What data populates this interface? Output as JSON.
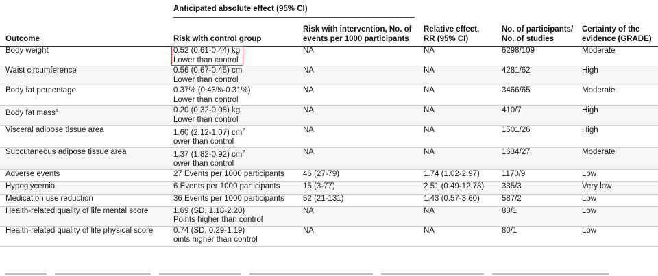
{
  "header": {
    "group_label": "Anticipated absolute effect (95% CI)",
    "columns": [
      {
        "line1": "",
        "line2": "Outcome"
      },
      {
        "line1": "",
        "line2": "Risk with control group"
      },
      {
        "line1": "Risk with intervention, No. of",
        "line2": "events per 1000 participants"
      },
      {
        "line1": "Relative effect,",
        "line2": "RR (95% CI)"
      },
      {
        "line1": "No. of participants/",
        "line2": "No. of studies"
      },
      {
        "line1": "Certainty of the",
        "line2": "evidence (GRADE)"
      }
    ]
  },
  "rows": [
    {
      "outcome": "Body weight",
      "control": "0.52 (0.61-0.44) kg",
      "control_sub": "Lower than control",
      "intervention": "NA",
      "relative": "NA",
      "participants": "6298/109",
      "certainty": "Moderate",
      "highlighted": true
    },
    {
      "outcome": "Waist circumference",
      "control": "0.56 (0.67-0.45) cm",
      "control_sub": "Lower than control",
      "intervention": "NA",
      "relative": "NA",
      "participants": "4281/62",
      "certainty": "High"
    },
    {
      "outcome": "Body fat percentage",
      "control": "0.37% (0.43%-0.31%)",
      "control_sub": "Lower than control",
      "intervention": "NA",
      "relative": "NA",
      "participants": "3466/65",
      "certainty": "Moderate"
    },
    {
      "outcome": "Body fat mass",
      "outcome_sup": "a",
      "control": "0.20 (0.32-0.08) kg",
      "control_sub": "Lower than control",
      "intervention": "NA",
      "relative": "NA",
      "participants": "410/7",
      "certainty": "High"
    },
    {
      "outcome": "Visceral adipose tissue area",
      "control": "1.60 (2.12-1.07) cm",
      "control_sup": "2",
      "control_sub": "ower than control",
      "intervention": "NA",
      "relative": "NA",
      "participants": "1501/26",
      "certainty": "High"
    },
    {
      "outcome": "Subcutaneous adipose tissue area",
      "control": "1.37 (1.82-0.92) cm",
      "control_sup": "2",
      "control_sub": "ower than control",
      "intervention": "NA",
      "relative": "NA",
      "participants": "1634/27",
      "certainty": "Moderate"
    },
    {
      "outcome": "Adverse events",
      "control": "27 Events per 1000 participants",
      "control_sub": "",
      "intervention": "46 (27-79)",
      "relative": "1.74 (1.02-2.97)",
      "participants": "1170/9",
      "certainty": "Low"
    },
    {
      "outcome": "Hypoglycemia",
      "control": "6 Events per 1000 participants",
      "control_sub": "",
      "intervention": "15 (3-77)",
      "relative": "2.51 (0.49-12.78)",
      "participants": "335/3",
      "certainty": "Very low"
    },
    {
      "outcome": "Medication use reduction",
      "control": "36 Events per 1000 participants",
      "control_sub": "",
      "intervention": "52 (21-131)",
      "relative": "1.43 (0.57-3.60)",
      "participants": "587/2",
      "certainty": "Low"
    },
    {
      "outcome": "Health-related quality of life mental score",
      "control": "1.69 (SD, 1.18-2.20)",
      "control_sub": "Points higher than control",
      "intervention": "NA",
      "relative": "NA",
      "participants": "80/1",
      "certainty": "Low"
    },
    {
      "outcome": "Health-related quality of life physical score",
      "control": "0.74 (SD, 0.29-1.19)",
      "control_sub": "oints higher than control",
      "intervention": "NA",
      "relative": "NA",
      "participants": "80/1",
      "certainty": "Low"
    }
  ],
  "colors": {
    "highlight_border": "#e0403a",
    "header_rule": "#333333",
    "row_rule": "#cfcfcf"
  }
}
